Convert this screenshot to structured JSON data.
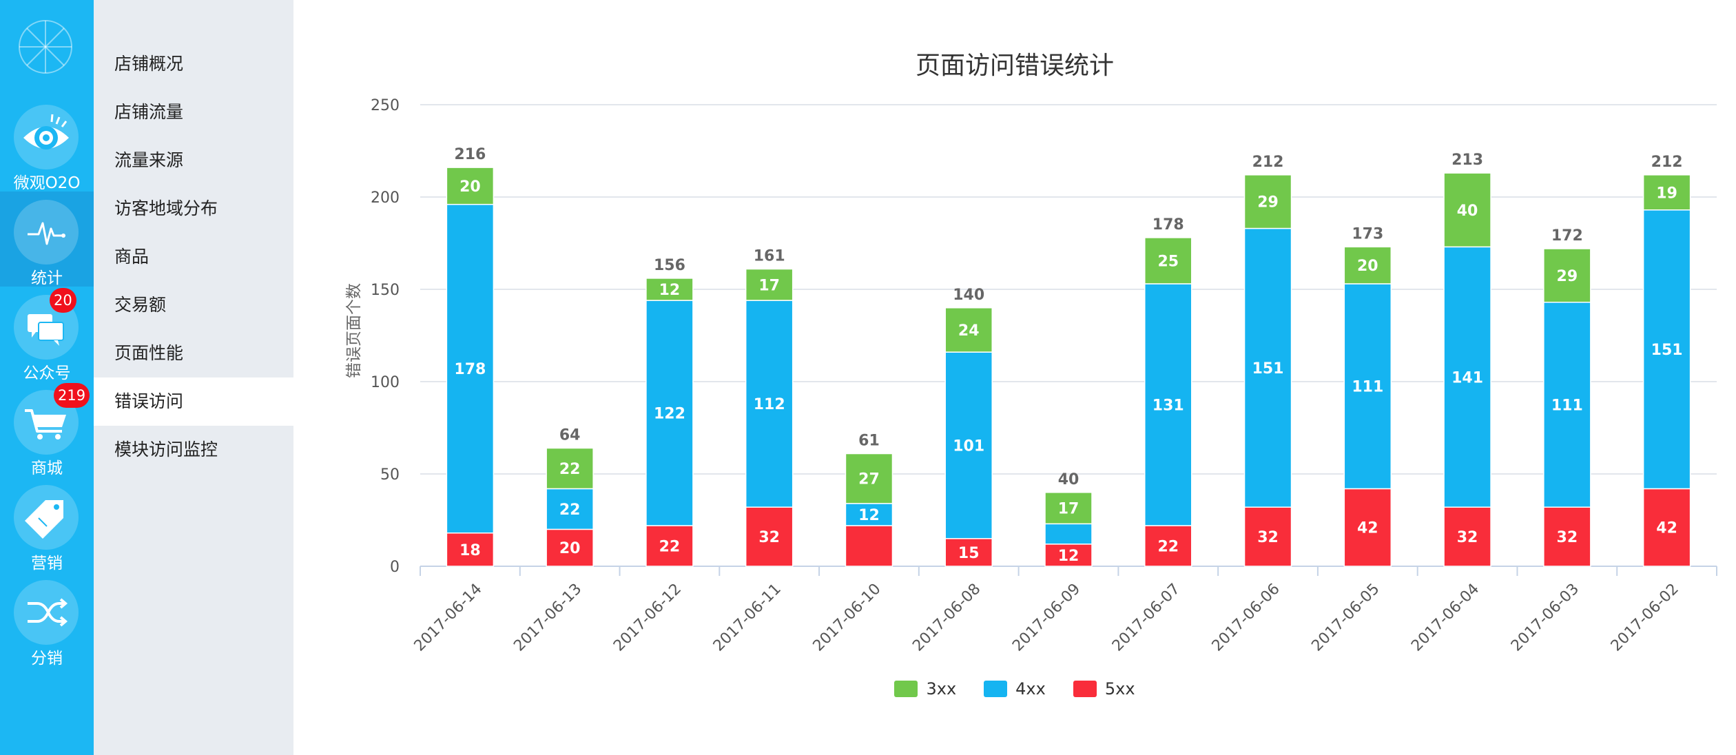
{
  "rail": {
    "items": [
      {
        "label": "微观O2O",
        "icon": "eye-icon",
        "active": false,
        "badge": ""
      },
      {
        "label": "统计",
        "icon": "pulse-icon",
        "active": true,
        "badge": ""
      },
      {
        "label": "公众号",
        "icon": "chat-icon",
        "active": false,
        "badge": "20"
      },
      {
        "label": "商城",
        "icon": "cart-icon",
        "active": false,
        "badge": "219"
      },
      {
        "label": "营销",
        "icon": "tag-icon",
        "active": false,
        "badge": ""
      },
      {
        "label": "分销",
        "icon": "shuffle-icon",
        "active": false,
        "badge": ""
      }
    ]
  },
  "submenu": {
    "items": [
      {
        "label": "店铺概况",
        "active": false
      },
      {
        "label": "店铺流量",
        "active": false
      },
      {
        "label": "流量来源",
        "active": false
      },
      {
        "label": "访客地域分布",
        "active": false
      },
      {
        "label": "商品",
        "active": false
      },
      {
        "label": "交易额",
        "active": false
      },
      {
        "label": "页面性能",
        "active": false
      },
      {
        "label": "错误访问",
        "active": true
      },
      {
        "label": "模块访问监控",
        "active": false
      }
    ]
  },
  "colors": {
    "rail_bg": "#1cb7f3",
    "series_3xx": "#71c84b",
    "series_4xx": "#15b4f1",
    "series_5xx": "#f92d3a"
  },
  "chart_data": {
    "type": "bar",
    "stacked": true,
    "title": "页面访问错误统计",
    "xlabel": "",
    "ylabel": "错误页面个数",
    "ylim": [
      0,
      250
    ],
    "yticks": [
      0,
      50,
      100,
      150,
      200,
      250
    ],
    "grid": true,
    "legend_position": "bottom",
    "categories": [
      "2017-06-14",
      "2017-06-13",
      "2017-06-12",
      "2017-06-11",
      "2017-06-10",
      "2017-06-08",
      "2017-06-09",
      "2017-06-07",
      "2017-06-06",
      "2017-06-05",
      "2017-06-04",
      "2017-06-03",
      "2017-06-02"
    ],
    "series": [
      {
        "name": "5xx",
        "color": "#f92d3a",
        "values": [
          18,
          20,
          22,
          32,
          22,
          15,
          12,
          22,
          32,
          42,
          32,
          32,
          42
        ],
        "labels": [
          "18",
          "20",
          "22",
          "32",
          "",
          "15",
          "12",
          "22",
          "32",
          "42",
          "32",
          "32",
          "42"
        ]
      },
      {
        "name": "4xx",
        "color": "#15b4f1",
        "values": [
          178,
          22,
          122,
          112,
          12,
          101,
          11,
          131,
          151,
          111,
          141,
          111,
          151
        ],
        "labels": [
          "178",
          "22",
          "122",
          "112",
          "12",
          "101",
          "",
          "131",
          "151",
          "111",
          "141",
          "111",
          "151"
        ]
      },
      {
        "name": "3xx",
        "color": "#71c84b",
        "values": [
          20,
          22,
          12,
          17,
          27,
          24,
          17,
          25,
          29,
          20,
          40,
          29,
          19
        ],
        "labels": [
          "20",
          "22",
          "12",
          "17",
          "27",
          "24",
          "17",
          "25",
          "29",
          "20",
          "40",
          "29",
          "19"
        ]
      }
    ],
    "totals": [
      "216",
      "64",
      "156",
      "161",
      "61",
      "140",
      "40",
      "178",
      "212",
      "173",
      "213",
      "172",
      "212"
    ],
    "legend": [
      "3xx",
      "4xx",
      "5xx"
    ]
  }
}
